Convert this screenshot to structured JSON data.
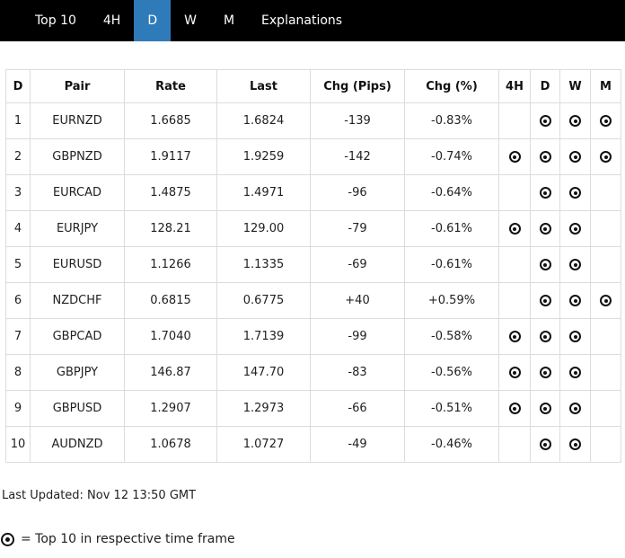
{
  "colors": {
    "nav_bg": "#000000",
    "active_tab": "#2f7ab9",
    "border": "#dcdcdc",
    "text": "#212121",
    "marker": "#111111"
  },
  "nav": {
    "items": [
      {
        "label": "Top 10",
        "active": false
      },
      {
        "label": "4H",
        "active": false
      },
      {
        "label": "D",
        "active": true
      },
      {
        "label": "W",
        "active": false
      },
      {
        "label": "M",
        "active": false
      },
      {
        "label": "Explanations",
        "active": false
      }
    ]
  },
  "table": {
    "headers": [
      "D",
      "Pair",
      "Rate",
      "Last",
      "Chg (Pips)",
      "Chg (%)",
      "4H",
      "D",
      "W",
      "M"
    ],
    "rows": [
      {
        "rank": "1",
        "pair": "EURNZD",
        "rate": "1.6685",
        "last": "1.6824",
        "chg_pips": "-139",
        "chg_pct": "-0.83%",
        "tf": {
          "h4": false,
          "d": true,
          "w": true,
          "m": true
        }
      },
      {
        "rank": "2",
        "pair": "GBPNZD",
        "rate": "1.9117",
        "last": "1.9259",
        "chg_pips": "-142",
        "chg_pct": "-0.74%",
        "tf": {
          "h4": true,
          "d": true,
          "w": true,
          "m": true
        }
      },
      {
        "rank": "3",
        "pair": "EURCAD",
        "rate": "1.4875",
        "last": "1.4971",
        "chg_pips": "-96",
        "chg_pct": "-0.64%",
        "tf": {
          "h4": false,
          "d": true,
          "w": true,
          "m": false
        }
      },
      {
        "rank": "4",
        "pair": "EURJPY",
        "rate": "128.21",
        "last": "129.00",
        "chg_pips": "-79",
        "chg_pct": "-0.61%",
        "tf": {
          "h4": true,
          "d": true,
          "w": true,
          "m": false
        }
      },
      {
        "rank": "5",
        "pair": "EURUSD",
        "rate": "1.1266",
        "last": "1.1335",
        "chg_pips": "-69",
        "chg_pct": "-0.61%",
        "tf": {
          "h4": false,
          "d": true,
          "w": true,
          "m": false
        }
      },
      {
        "rank": "6",
        "pair": "NZDCHF",
        "rate": "0.6815",
        "last": "0.6775",
        "chg_pips": "+40",
        "chg_pct": "+0.59%",
        "tf": {
          "h4": false,
          "d": true,
          "w": true,
          "m": true
        }
      },
      {
        "rank": "7",
        "pair": "GBPCAD",
        "rate": "1.7040",
        "last": "1.7139",
        "chg_pips": "-99",
        "chg_pct": "-0.58%",
        "tf": {
          "h4": true,
          "d": true,
          "w": true,
          "m": false
        }
      },
      {
        "rank": "8",
        "pair": "GBPJPY",
        "rate": "146.87",
        "last": "147.70",
        "chg_pips": "-83",
        "chg_pct": "-0.56%",
        "tf": {
          "h4": true,
          "d": true,
          "w": true,
          "m": false
        }
      },
      {
        "rank": "9",
        "pair": "GBPUSD",
        "rate": "1.2907",
        "last": "1.2973",
        "chg_pips": "-66",
        "chg_pct": "-0.51%",
        "tf": {
          "h4": true,
          "d": true,
          "w": true,
          "m": false
        }
      },
      {
        "rank": "10",
        "pair": "AUDNZD",
        "rate": "1.0678",
        "last": "1.0727",
        "chg_pips": "-49",
        "chg_pct": "-0.46%",
        "tf": {
          "h4": false,
          "d": true,
          "w": true,
          "m": false
        }
      }
    ]
  },
  "footer": {
    "last_updated": "Last Updated: Nov 12 13:50 GMT",
    "legend_text": "= Top 10 in respective time frame",
    "legend_icon": "top10-marker"
  }
}
